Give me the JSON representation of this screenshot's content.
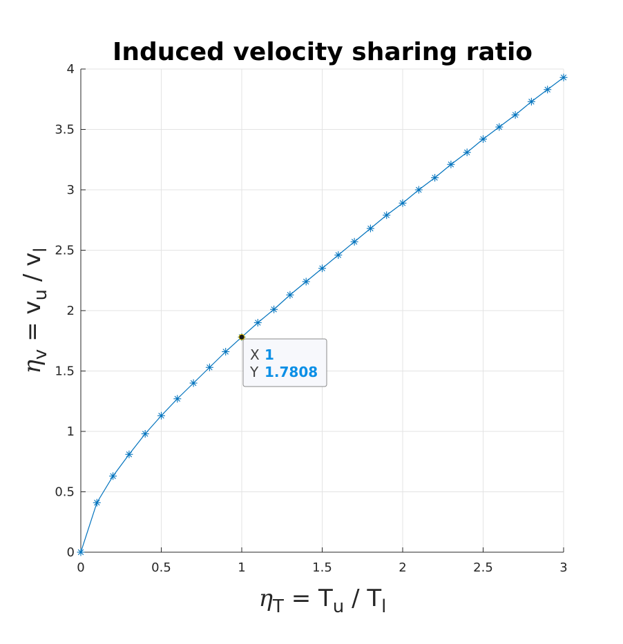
{
  "chart_data": {
    "type": "line",
    "title": "Induced velocity sharing ratio",
    "xlabel": {
      "sym": "η",
      "sub": "T",
      "eq": " = T",
      "sub2": "u",
      "div": " / T",
      "sub3": "l"
    },
    "ylabel": {
      "sym": "η",
      "sub": "v",
      "eq": " = v",
      "sub2": "u",
      "div": " / v",
      "sub3": "l"
    },
    "xlim": [
      0,
      3
    ],
    "ylim": [
      0,
      4
    ],
    "xticks": [
      "0",
      "0.5",
      "1",
      "1.5",
      "2",
      "2.5",
      "3"
    ],
    "yticks": [
      "0",
      "0.5",
      "1",
      "1.5",
      "2",
      "2.5",
      "3",
      "3.5",
      "4"
    ],
    "grid": true,
    "color": "#0072bd",
    "marker": "asterisk",
    "series": [
      {
        "x": [
          0,
          0.1,
          0.2,
          0.3,
          0.4,
          0.5,
          0.6,
          0.7,
          0.8,
          0.9,
          1.0,
          1.1,
          1.2,
          1.3,
          1.4,
          1.5,
          1.6,
          1.7,
          1.8,
          1.9,
          2.0,
          2.1,
          2.2,
          2.3,
          2.4,
          2.5,
          2.6,
          2.7,
          2.8,
          2.9,
          3.0
        ],
        "y": [
          0,
          0.41,
          0.63,
          0.81,
          0.98,
          1.13,
          1.27,
          1.4,
          1.53,
          1.66,
          1.7808,
          1.9,
          2.01,
          2.13,
          2.24,
          2.35,
          2.46,
          2.57,
          2.68,
          2.79,
          2.89,
          3.0,
          3.1,
          3.21,
          3.31,
          3.42,
          3.52,
          3.62,
          3.73,
          3.83,
          3.93
        ]
      }
    ],
    "datatip": {
      "x_key": "X",
      "x_value": "1",
      "y_key": "Y",
      "y_value": "1.7808",
      "x": 1,
      "y": 1.7808
    }
  }
}
